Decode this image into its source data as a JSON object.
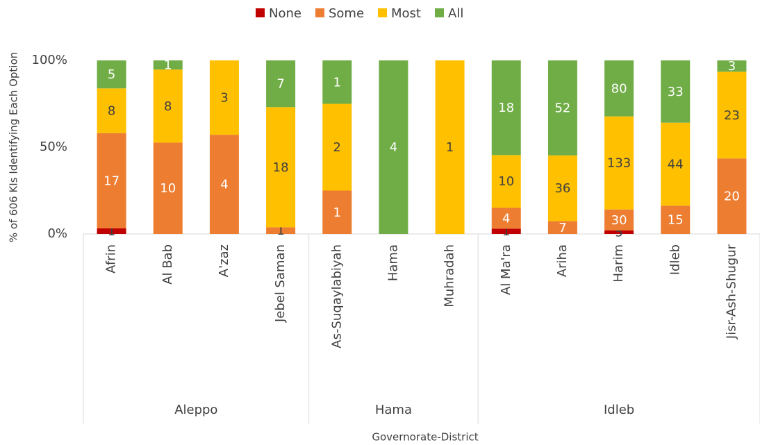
{
  "chart_data": {
    "type": "stacked_percent_bar",
    "y_label": "% of 606 KIs Identifying Each Option",
    "x_label": "Governorate-District",
    "groups": [
      {
        "name": "Aleppo",
        "categories": [
          "Afrin",
          "Al Bab",
          "A'zaz",
          "Jebel Saman"
        ]
      },
      {
        "name": "Hama",
        "categories": [
          "As-Suqaylabiyah",
          "Hama",
          "Muhradah"
        ]
      },
      {
        "name": "Idleb",
        "categories": [
          "Al Ma'ra",
          "Ariha",
          "Harim",
          "Idleb",
          "Jisr-Ash-Shugur"
        ]
      }
    ],
    "series": [
      {
        "name": "None",
        "color": "#c00000",
        "values": [
          1,
          null,
          null,
          null,
          null,
          null,
          null,
          1,
          null,
          5,
          null,
          null
        ]
      },
      {
        "name": "Some",
        "color": "#ed7d31",
        "values": [
          17,
          10,
          4,
          1,
          1,
          null,
          null,
          4,
          7,
          30,
          15,
          20
        ]
      },
      {
        "name": "Most",
        "color": "#ffc000",
        "values": [
          8,
          8,
          3,
          18,
          2,
          null,
          1,
          10,
          36,
          133,
          44,
          23
        ]
      },
      {
        "name": "All",
        "color": "#70ad47",
        "values": [
          5,
          1,
          null,
          7,
          1,
          4,
          null,
          18,
          52,
          80,
          33,
          3
        ]
      }
    ],
    "ylim": [
      0,
      100
    ],
    "yticks": [
      {
        "value": 0,
        "label": "0%"
      },
      {
        "value": 50,
        "label": "50%"
      },
      {
        "value": 100,
        "label": "100%"
      }
    ],
    "grid": false,
    "legend": "top"
  }
}
